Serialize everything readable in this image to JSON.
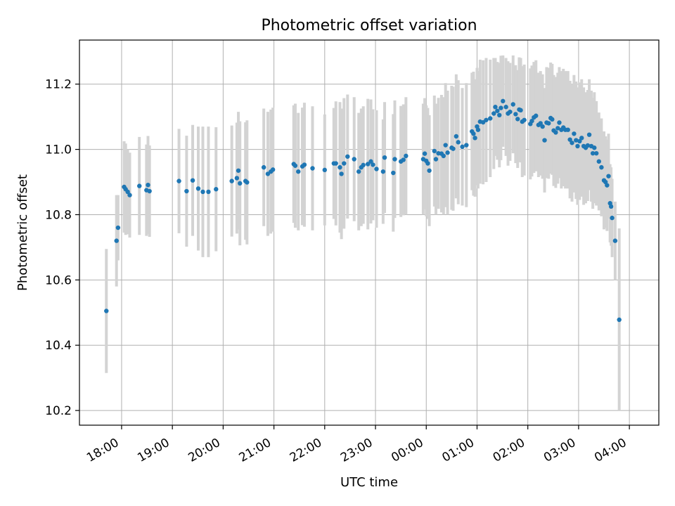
{
  "chart_data": {
    "type": "scatter",
    "title": "Photometric offset variation",
    "xlabel": "UTC time",
    "ylabel": "Photometric offset",
    "x_unit": "hours since 18:00 UTC",
    "xlim": [
      -0.83,
      10.58
    ],
    "ylim": [
      10.155,
      11.335
    ],
    "x_ticks": [
      0,
      1,
      2,
      3,
      4,
      5,
      6,
      7,
      8,
      9,
      10
    ],
    "x_tick_labels": [
      "18:00",
      "19:00",
      "20:00",
      "21:00",
      "22:00",
      "23:00",
      "00:00",
      "01:00",
      "02:00",
      "03:00",
      "04:00"
    ],
    "y_ticks": [
      10.2,
      10.4,
      10.6,
      10.8,
      11.0,
      11.2
    ],
    "y_tick_labels": [
      "10.2",
      "10.4",
      "10.6",
      "10.8",
      "11.0",
      "11.2"
    ],
    "grid": true,
    "point_color": "#1f77b4",
    "errorbar_color": "#d3d3d3",
    "series": [
      {
        "name": "offset",
        "points": [
          [
            -0.3,
            10.505,
            0.19
          ],
          [
            -0.1,
            10.72,
            0.14
          ],
          [
            -0.07,
            10.76,
            0.1
          ],
          [
            0.05,
            10.885,
            0.14
          ],
          [
            0.08,
            10.878,
            0.14
          ],
          [
            0.12,
            10.87,
            0.13
          ],
          [
            0.16,
            10.86,
            0.13
          ],
          [
            0.35,
            10.888,
            0.15
          ],
          [
            0.49,
            10.875,
            0.14
          ],
          [
            0.52,
            10.891,
            0.15
          ],
          [
            0.55,
            10.872,
            0.14
          ],
          [
            1.13,
            10.903,
            0.16
          ],
          [
            1.28,
            10.872,
            0.17
          ],
          [
            1.4,
            10.905,
            0.17
          ],
          [
            1.51,
            10.88,
            0.19
          ],
          [
            1.6,
            10.87,
            0.2
          ],
          [
            1.71,
            10.87,
            0.2
          ],
          [
            1.86,
            10.878,
            0.19
          ],
          [
            2.17,
            10.903,
            0.17
          ],
          [
            2.27,
            10.912,
            0.17
          ],
          [
            2.3,
            10.935,
            0.18
          ],
          [
            2.33,
            10.896,
            0.19
          ],
          [
            2.44,
            10.903,
            0.18
          ],
          [
            2.47,
            10.899,
            0.19
          ],
          [
            2.8,
            10.945,
            0.18
          ],
          [
            2.88,
            10.925,
            0.19
          ],
          [
            2.94,
            10.932,
            0.19
          ],
          [
            2.98,
            10.938,
            0.19
          ],
          [
            3.39,
            10.955,
            0.18
          ],
          [
            3.42,
            10.95,
            0.19
          ],
          [
            3.48,
            10.932,
            0.18
          ],
          [
            3.56,
            10.948,
            0.18
          ],
          [
            3.6,
            10.953,
            0.19
          ],
          [
            3.76,
            10.942,
            0.19
          ],
          [
            4.0,
            10.937,
            0.17
          ],
          [
            4.18,
            10.957,
            0.17
          ],
          [
            4.22,
            10.957,
            0.19
          ],
          [
            4.3,
            10.945,
            0.2
          ],
          [
            4.33,
            10.925,
            0.2
          ],
          [
            4.38,
            10.957,
            0.2
          ],
          [
            4.45,
            10.978,
            0.19
          ],
          [
            4.58,
            10.97,
            0.19
          ],
          [
            4.67,
            10.932,
            0.18
          ],
          [
            4.72,
            10.945,
            0.18
          ],
          [
            4.76,
            10.952,
            0.18
          ],
          [
            4.85,
            10.955,
            0.2
          ],
          [
            4.91,
            10.963,
            0.19
          ],
          [
            4.95,
            10.953,
            0.17
          ],
          [
            5.02,
            10.94,
            0.18
          ],
          [
            5.15,
            10.932,
            0.16
          ],
          [
            5.18,
            10.975,
            0.17
          ],
          [
            5.35,
            10.928,
            0.18
          ],
          [
            5.38,
            10.97,
            0.18
          ],
          [
            5.5,
            10.963,
            0.17
          ],
          [
            5.55,
            10.968,
            0.17
          ],
          [
            5.6,
            10.98,
            0.18
          ],
          [
            5.94,
            10.97,
            0.17
          ],
          [
            5.97,
            10.987,
            0.17
          ],
          [
            6.0,
            10.965,
            0.17
          ],
          [
            6.03,
            10.957,
            0.17
          ],
          [
            6.06,
            10.935,
            0.17
          ],
          [
            6.16,
            10.995,
            0.17
          ],
          [
            6.19,
            10.97,
            0.17
          ],
          [
            6.24,
            10.988,
            0.17
          ],
          [
            6.3,
            10.987,
            0.18
          ],
          [
            6.34,
            10.98,
            0.18
          ],
          [
            6.38,
            11.013,
            0.19
          ],
          [
            6.42,
            10.99,
            0.19
          ],
          [
            6.5,
            11.005,
            0.19
          ],
          [
            6.53,
            11.002,
            0.19
          ],
          [
            6.59,
            11.04,
            0.19
          ],
          [
            6.63,
            11.022,
            0.19
          ],
          [
            6.71,
            11.008,
            0.18
          ],
          [
            6.79,
            11.013,
            0.19
          ],
          [
            6.9,
            11.055,
            0.18
          ],
          [
            6.93,
            11.048,
            0.19
          ],
          [
            6.96,
            11.035,
            0.18
          ],
          [
            7.0,
            11.07,
            0.18
          ],
          [
            7.02,
            11.06,
            0.18
          ],
          [
            7.06,
            11.085,
            0.19
          ],
          [
            7.12,
            11.083,
            0.19
          ],
          [
            7.18,
            11.09,
            0.19
          ],
          [
            7.26,
            11.095,
            0.18
          ],
          [
            7.33,
            11.11,
            0.17
          ],
          [
            7.36,
            11.13,
            0.15
          ],
          [
            7.4,
            11.118,
            0.15
          ],
          [
            7.44,
            11.105,
            0.16
          ],
          [
            7.47,
            11.127,
            0.16
          ],
          [
            7.51,
            11.148,
            0.14
          ],
          [
            7.57,
            11.13,
            0.15
          ],
          [
            7.61,
            11.11,
            0.16
          ],
          [
            7.65,
            11.115,
            0.15
          ],
          [
            7.71,
            11.138,
            0.15
          ],
          [
            7.76,
            11.108,
            0.15
          ],
          [
            7.8,
            11.093,
            0.15
          ],
          [
            7.83,
            11.122,
            0.16
          ],
          [
            7.86,
            11.12,
            0.16
          ],
          [
            7.89,
            11.085,
            0.17
          ],
          [
            7.93,
            11.09,
            0.17
          ],
          [
            8.05,
            11.078,
            0.17
          ],
          [
            8.08,
            11.087,
            0.17
          ],
          [
            8.12,
            11.098,
            0.17
          ],
          [
            8.16,
            11.103,
            0.17
          ],
          [
            8.21,
            11.075,
            0.16
          ],
          [
            8.25,
            11.08,
            0.16
          ],
          [
            8.29,
            11.07,
            0.16
          ],
          [
            8.33,
            11.028,
            0.16
          ],
          [
            8.37,
            11.082,
            0.17
          ],
          [
            8.41,
            11.08,
            0.17
          ],
          [
            8.45,
            11.096,
            0.17
          ],
          [
            8.48,
            11.092,
            0.17
          ],
          [
            8.51,
            11.058,
            0.17
          ],
          [
            8.55,
            11.052,
            0.17
          ],
          [
            8.59,
            11.065,
            0.17
          ],
          [
            8.62,
            11.082,
            0.17
          ],
          [
            8.66,
            11.06,
            0.18
          ],
          [
            8.7,
            11.067,
            0.18
          ],
          [
            8.74,
            11.06,
            0.18
          ],
          [
            8.79,
            11.06,
            0.18
          ],
          [
            8.83,
            11.03,
            0.18
          ],
          [
            8.87,
            11.02,
            0.18
          ],
          [
            8.91,
            11.048,
            0.18
          ],
          [
            8.95,
            11.028,
            0.18
          ],
          [
            8.98,
            11.01,
            0.18
          ],
          [
            9.02,
            11.025,
            0.18
          ],
          [
            9.06,
            11.035,
            0.18
          ],
          [
            9.1,
            11.01,
            0.18
          ],
          [
            9.14,
            11.005,
            0.17
          ],
          [
            9.18,
            11.012,
            0.17
          ],
          [
            9.21,
            11.045,
            0.17
          ],
          [
            9.25,
            11.01,
            0.17
          ],
          [
            9.28,
            10.988,
            0.17
          ],
          [
            9.31,
            11.005,
            0.17
          ],
          [
            9.35,
            10.988,
            0.16
          ],
          [
            9.4,
            10.963,
            0.15
          ],
          [
            9.45,
            10.945,
            0.15
          ],
          [
            9.5,
            10.905,
            0.15
          ],
          [
            9.53,
            10.9,
            0.14
          ],
          [
            9.56,
            10.89,
            0.14
          ],
          [
            9.59,
            10.918,
            0.13
          ],
          [
            9.62,
            10.835,
            0.12
          ],
          [
            9.64,
            10.825,
            0.12
          ],
          [
            9.66,
            10.79,
            0.12
          ],
          [
            9.72,
            10.72,
            0.12
          ],
          [
            9.8,
            10.478,
            0.28
          ]
        ]
      }
    ]
  }
}
